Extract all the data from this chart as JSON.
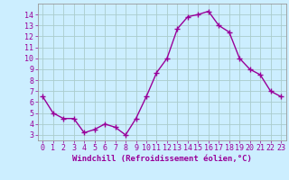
{
  "x": [
    0,
    1,
    2,
    3,
    4,
    5,
    6,
    7,
    8,
    9,
    10,
    11,
    12,
    13,
    14,
    15,
    16,
    17,
    18,
    19,
    20,
    21,
    22,
    23
  ],
  "y": [
    6.5,
    5.0,
    4.5,
    4.5,
    3.2,
    3.5,
    4.0,
    3.7,
    3.0,
    4.5,
    6.5,
    8.7,
    10.0,
    12.7,
    13.8,
    14.0,
    14.3,
    13.0,
    12.4,
    10.0,
    9.0,
    8.5,
    7.0,
    6.5
  ],
  "line_color": "#990099",
  "marker": "+",
  "marker_size": 4,
  "bg_color": "#cceeff",
  "grid_color": "#aacccc",
  "xlabel": "Windchill (Refroidissement éolien,°C)",
  "ylim": [
    2.5,
    15.0
  ],
  "xlim": [
    -0.5,
    23.5
  ],
  "yticks": [
    3,
    4,
    5,
    6,
    7,
    8,
    9,
    10,
    11,
    12,
    13,
    14
  ],
  "xticks": [
    0,
    1,
    2,
    3,
    4,
    5,
    6,
    7,
    8,
    9,
    10,
    11,
    12,
    13,
    14,
    15,
    16,
    17,
    18,
    19,
    20,
    21,
    22,
    23
  ],
  "tick_color": "#990099",
  "label_color": "#990099",
  "axis_color": "#999999",
  "xlabel_fontsize": 6.5,
  "tick_fontsize": 6.0,
  "linewidth": 1.0,
  "marker_edgewidth": 1.0
}
